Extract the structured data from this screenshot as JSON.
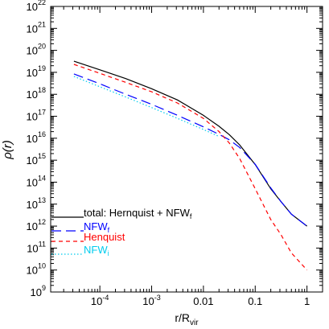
{
  "chart_data": {
    "type": "line",
    "xlabel": "r/R",
    "xlabel_sub": "vir",
    "ylabel": "ρ(r)",
    "x_scale": "log",
    "y_scale": "log",
    "xlim": [
      1.122e-05,
      2.0
    ],
    "ylim": [
      1000000000.0,
      1e+22
    ],
    "grid": false,
    "legend_placement": "bottom-left",
    "x_ticks": [
      {
        "value": 0.0001,
        "label": "10",
        "sup": "-4"
      },
      {
        "value": 0.001,
        "label": "10",
        "sup": "-3"
      },
      {
        "value": 0.01,
        "label": "0.01",
        "sup": ""
      },
      {
        "value": 0.1,
        "label": "0.1",
        "sup": ""
      },
      {
        "value": 1,
        "label": "1",
        "sup": ""
      }
    ],
    "y_ticks": [
      {
        "value": 1000000000.0,
        "label": "10",
        "sup": "9"
      },
      {
        "value": 10000000000.0,
        "label": "10",
        "sup": "10"
      },
      {
        "value": 100000000000.0,
        "label": "10",
        "sup": "11"
      },
      {
        "value": 1000000000000.0,
        "label": "10",
        "sup": "12"
      },
      {
        "value": 10000000000000.0,
        "label": "10",
        "sup": "13"
      },
      {
        "value": 100000000000000.0,
        "label": "10",
        "sup": "14"
      },
      {
        "value": 1000000000000000.0,
        "label": "10",
        "sup": "15"
      },
      {
        "value": 1e+16,
        "label": "10",
        "sup": "16"
      },
      {
        "value": 1e+17,
        "label": "10",
        "sup": "17"
      },
      {
        "value": 1e+18,
        "label": "10",
        "sup": "18"
      },
      {
        "value": 1e+19,
        "label": "10",
        "sup": "19"
      },
      {
        "value": 1e+20,
        "label": "10",
        "sup": "20"
      },
      {
        "value": 1e+21,
        "label": "10",
        "sup": "21"
      },
      {
        "value": 1e+22,
        "label": "10",
        "sup": "22"
      }
    ],
    "series": [
      {
        "name": "total: Hernquist + NFW",
        "name_sub": "f",
        "color": "#000000",
        "dash": "solid",
        "x": [
          3.16e-05,
          0.0001,
          0.000316,
          0.001,
          0.00316,
          0.01,
          0.02,
          0.0316,
          0.05,
          0.1,
          0.2,
          0.316,
          0.5,
          1.0
        ],
        "y": [
          3.2e+19,
          1.3e+19,
          5.2e+18,
          1.8e+18,
          5.5e+17,
          1.1e+17,
          3.5e+16,
          1.45e+16,
          5000000000000000.0,
          630000000000000.0,
          50000000000000.0,
          13000000000000.0,
          3500000000000.0,
          1000000000000.0
        ]
      },
      {
        "name": "NFW",
        "name_sub": "f",
        "color": "#0000ff",
        "dash": "long",
        "x": [
          3.16e-05,
          0.0001,
          0.000316,
          0.001,
          0.00316,
          0.01,
          0.02,
          0.0316,
          0.05,
          0.1,
          0.2,
          0.316,
          0.5,
          1.0
        ],
        "y": [
          8.5e+18,
          3e+18,
          1e+18,
          3.5e+17,
          1.1e+17,
          3.3e+16,
          1.5e+16,
          8500000000000000.0,
          3800000000000000.0,
          650000000000000.0,
          55000000000000.0,
          13000000000000.0,
          3500000000000.0,
          1000000000000.0
        ]
      },
      {
        "name": "Henquist",
        "name_sub": "",
        "color": "#ff0000",
        "dash": "short",
        "x": [
          3.16e-05,
          0.0001,
          0.000316,
          0.001,
          0.00316,
          0.01,
          0.02,
          0.0316,
          0.05,
          0.1,
          0.2,
          0.316,
          0.5,
          1.0
        ],
        "y": [
          2.3e+19,
          9e+18,
          3.5e+18,
          1.3e+18,
          4e+17,
          8e+16,
          2e+16,
          6000000000000000.0,
          1200000000000000.0,
          50000000000000.0,
          2000000000000.0,
          400000000000.0,
          60000000000.0,
          10000000000.0
        ]
      },
      {
        "name": "NFW",
        "name_sub": "i",
        "color": "#00ccee",
        "dash": "dotted",
        "x": [
          3.16e-05,
          0.0001,
          0.000316,
          0.001,
          0.00316,
          0.01,
          0.02
        ],
        "y": [
          6.5e+18,
          2.2e+18,
          7.5e+17,
          2.5e+17,
          8e+16,
          2.5e+16,
          1.2e+16
        ]
      }
    ]
  }
}
